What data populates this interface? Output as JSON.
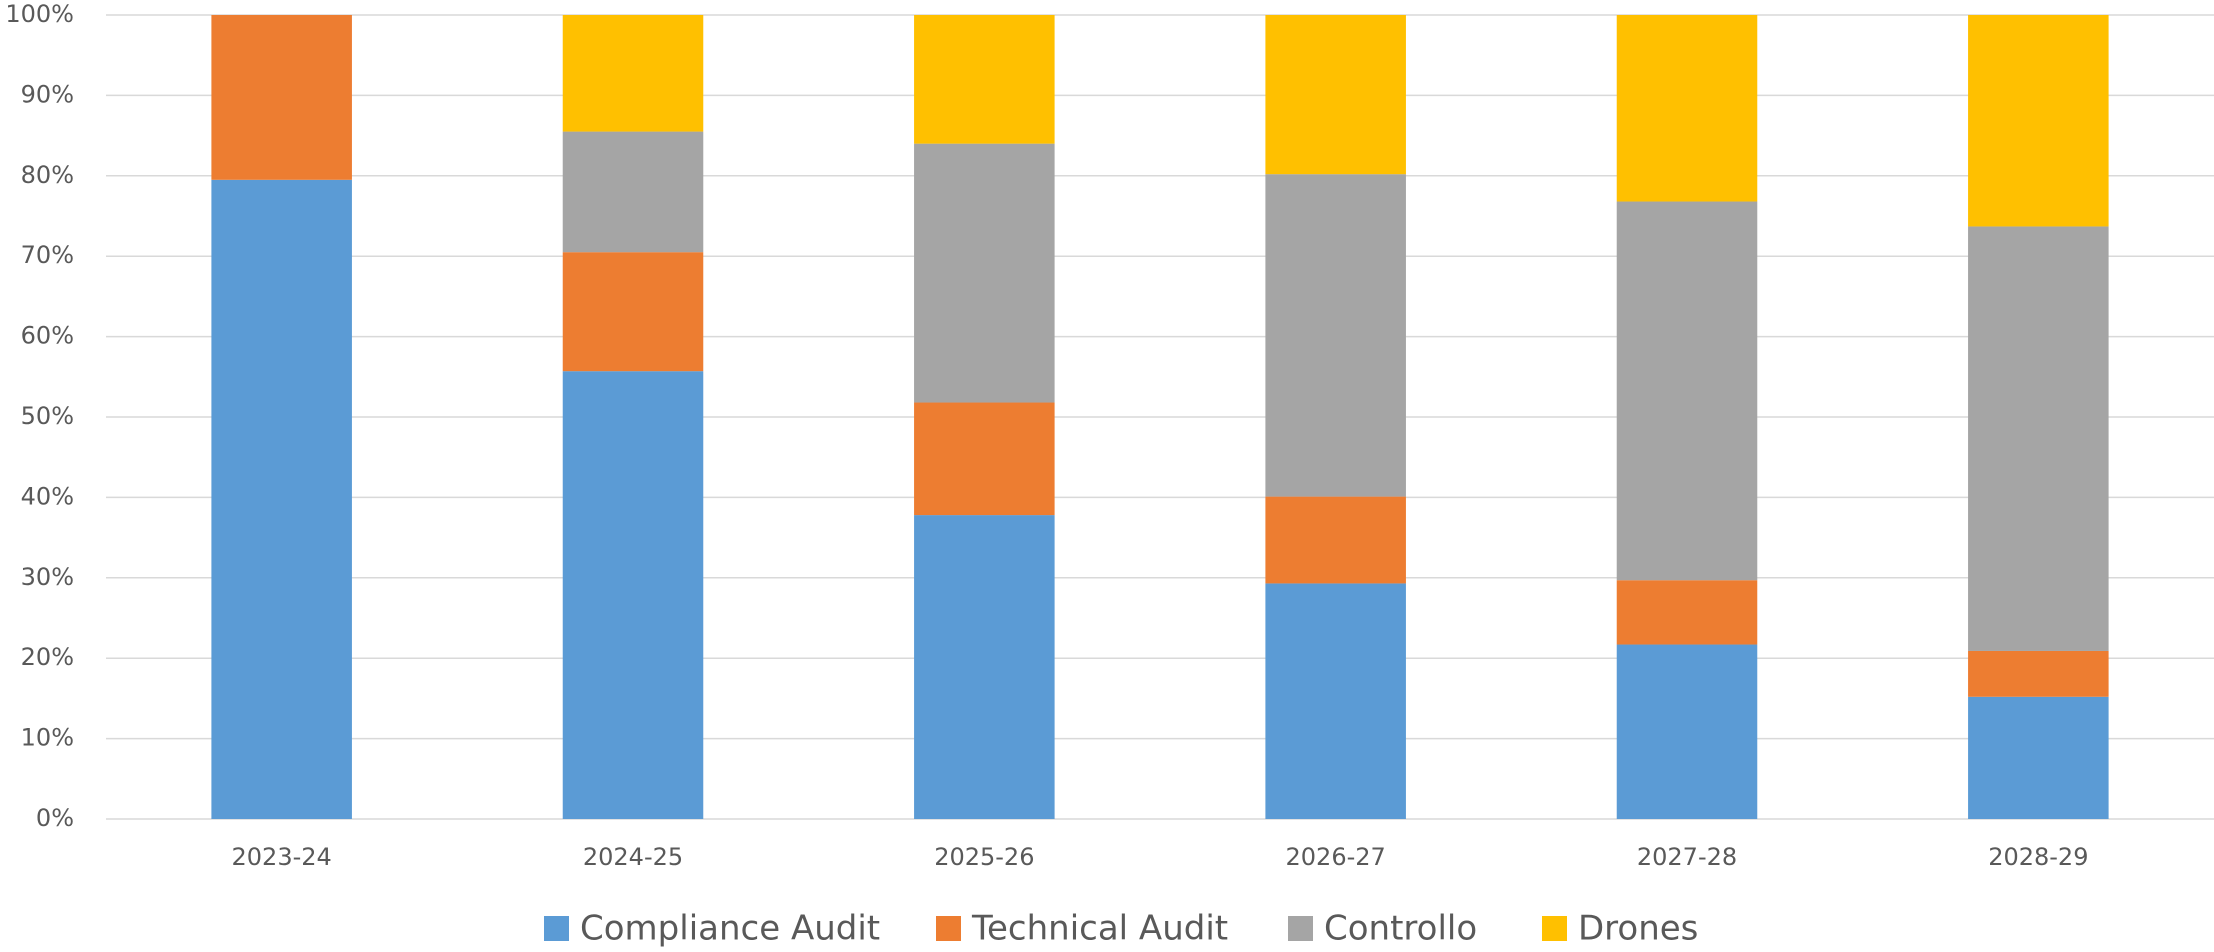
{
  "chart_data": {
    "type": "stacked_bar",
    "categories": [
      "2023-24",
      "2024-25",
      "2025-26",
      "2026-27",
      "2027-28",
      "2028-29"
    ],
    "series": [
      {
        "name": "Compliance Audit",
        "color": "#5b9bd5",
        "values": [
          79.5,
          55.7,
          37.8,
          29.3,
          21.7,
          15.2
        ]
      },
      {
        "name": "Technical Audit",
        "color": "#ed7d31",
        "values": [
          20.5,
          14.8,
          14,
          10.8,
          8,
          5.7
        ]
      },
      {
        "name": "Controllo",
        "color": "#a5a5a5",
        "values": [
          0,
          15,
          32.2,
          40.1,
          47.1,
          52.8
        ]
      },
      {
        "name": "Drones",
        "color": "#ffc000",
        "values": [
          0,
          14.5,
          16,
          19.8,
          23.2,
          26.3
        ]
      }
    ],
    "ylim": [
      0,
      100
    ],
    "yticks": [
      {
        "value": 0,
        "label": "0%"
      },
      {
        "value": 10,
        "label": "10%"
      },
      {
        "value": 20,
        "label": "20%"
      },
      {
        "value": 30,
        "label": "30%"
      },
      {
        "value": 40,
        "label": "40%"
      },
      {
        "value": 50,
        "label": "50%"
      },
      {
        "value": 60,
        "label": "60%"
      },
      {
        "value": 70,
        "label": "70%"
      },
      {
        "value": 80,
        "label": "80%"
      },
      {
        "value": 90,
        "label": "90%"
      },
      {
        "value": 100,
        "label": "100%"
      }
    ],
    "grid": true,
    "legend": "bottom"
  }
}
